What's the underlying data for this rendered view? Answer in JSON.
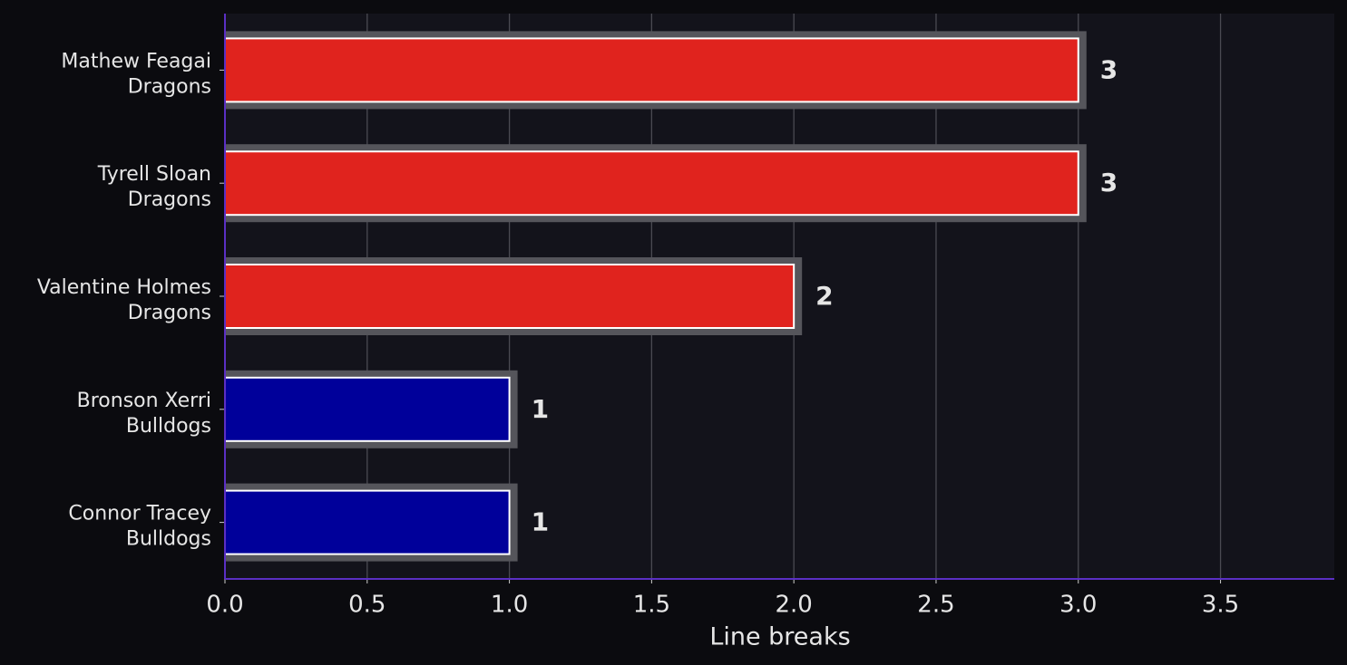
{
  "chart_data": {
    "type": "barh",
    "categories": [
      [
        "Mathew Feagai",
        "Dragons"
      ],
      [
        "Tyrell Sloan",
        "Dragons"
      ],
      [
        "Valentine Holmes",
        "Dragons"
      ],
      [
        "Bronson Xerri",
        "Bulldogs"
      ],
      [
        "Connor Tracey",
        "Bulldogs"
      ]
    ],
    "values": [
      3,
      3,
      2,
      1,
      1
    ],
    "colors": [
      "#e0231e",
      "#e0231e",
      "#e0231e",
      "#00009a",
      "#00009a"
    ],
    "xlabel": "Line breaks",
    "xlim": [
      0,
      3.9
    ],
    "xticks": [
      {
        "value": 0,
        "label": "0.0"
      },
      {
        "value": 0.5,
        "label": "0.5"
      },
      {
        "value": 1,
        "label": "1.0"
      },
      {
        "value": 1.5,
        "label": "1.5"
      },
      {
        "value": 2,
        "label": "2.0"
      },
      {
        "value": 2.5,
        "label": "2.5"
      },
      {
        "value": 3,
        "label": "3.0"
      },
      {
        "value": 3.5,
        "label": "3.5"
      }
    ],
    "grid": true
  }
}
